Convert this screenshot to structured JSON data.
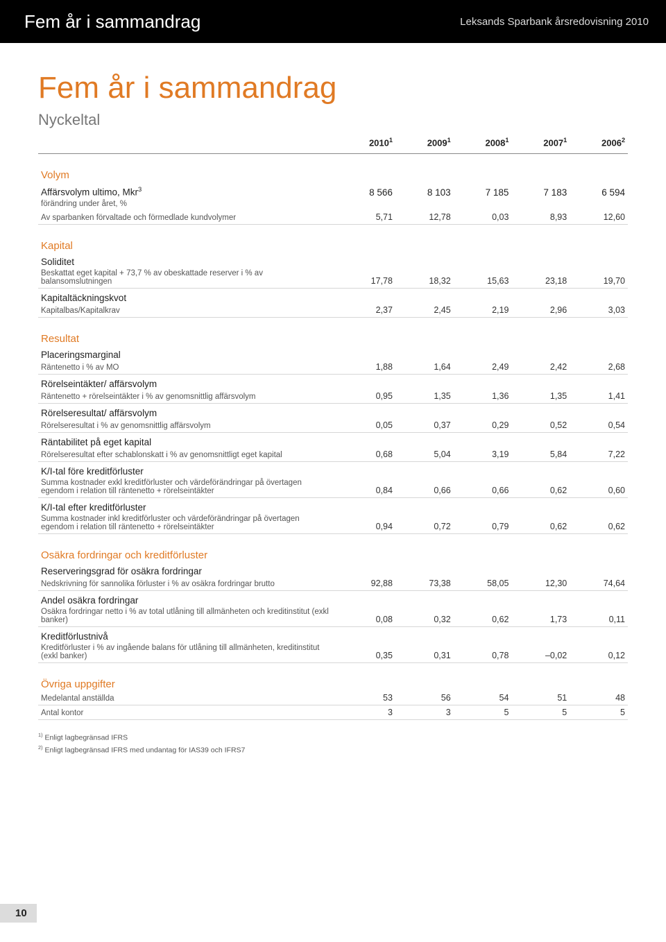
{
  "header": {
    "title": "Fem år i sammandrag",
    "right": "Leksands Sparbank årsredovisning 2010"
  },
  "main_title": "Fem år i sammandrag",
  "subtitle": "Nyckeltal",
  "years": [
    "2010",
    "2009",
    "2008",
    "2007",
    "2006"
  ],
  "year_super": [
    "1",
    "1",
    "1",
    "1",
    "2"
  ],
  "sections": [
    {
      "title": "Volym",
      "rows": [
        {
          "label": "Affärsvolym ultimo, Mkr",
          "sup": "3",
          "detail": "",
          "values": [
            "8 566",
            "8 103",
            "7 185",
            "7 183",
            "6 594"
          ]
        },
        {
          "label": "",
          "detail": "förändring under året, %",
          "values": [
            "",
            "",
            "",
            "",
            ""
          ],
          "noborder": true
        },
        {
          "label": "",
          "detail": "Av sparbanken förvaltade och förmedlade kundvolymer",
          "values": [
            "5,71",
            "12,78",
            "0,03",
            "8,93",
            "12,60"
          ]
        }
      ]
    },
    {
      "title": "Kapital",
      "rows": [
        {
          "label": "Soliditet",
          "detail": "",
          "values": [
            "",
            "",
            "",
            "",
            ""
          ],
          "noborder": true
        },
        {
          "label": "",
          "detail": "Beskattat eget kapital + 73,7 % av obeskattade reserver i % av balansomslutningen",
          "values": [
            "17,78",
            "18,32",
            "15,63",
            "23,18",
            "19,70"
          ]
        },
        {
          "label": "Kapitaltäckningskvot",
          "detail": "",
          "values": [
            "",
            "",
            "",
            "",
            ""
          ],
          "noborder": true
        },
        {
          "label": "",
          "detail": "Kapitalbas/Kapitalkrav",
          "values": [
            "2,37",
            "2,45",
            "2,19",
            "2,96",
            "3,03"
          ]
        }
      ]
    },
    {
      "title": "Resultat",
      "rows": [
        {
          "label": "Placeringsmarginal",
          "detail": "",
          "values": [
            "",
            "",
            "",
            "",
            ""
          ],
          "noborder": true
        },
        {
          "label": "",
          "detail": "Räntenetto i % av MO",
          "values": [
            "1,88",
            "1,64",
            "2,49",
            "2,42",
            "2,68"
          ]
        },
        {
          "label": "Rörelseintäkter/ affärsvolym",
          "detail": "",
          "values": [
            "",
            "",
            "",
            "",
            ""
          ],
          "noborder": true
        },
        {
          "label": "",
          "detail": "Räntenetto + rörelseintäkter i % av genomsnittlig affärsvolym",
          "values": [
            "0,95",
            "1,35",
            "1,36",
            "1,35",
            "1,41"
          ]
        },
        {
          "label": "Rörelseresultat/ affärsvolym",
          "detail": "",
          "values": [
            "",
            "",
            "",
            "",
            ""
          ],
          "noborder": true
        },
        {
          "label": "",
          "detail": "Rörelseresultat i % av genomsnittlig affärsvolym",
          "values": [
            "0,05",
            "0,37",
            "0,29",
            "0,52",
            "0,54"
          ]
        },
        {
          "label": "Räntabilitet på eget kapital",
          "detail": "",
          "values": [
            "",
            "",
            "",
            "",
            ""
          ],
          "noborder": true
        },
        {
          "label": "",
          "detail": "Rörelseresultat efter schablonskatt i % av genomsnittligt eget kapital",
          "values": [
            "0,68",
            "5,04",
            "3,19",
            "5,84",
            "7,22"
          ]
        },
        {
          "label": "K/I-tal före kreditförluster",
          "detail": "",
          "values": [
            "",
            "",
            "",
            "",
            ""
          ],
          "noborder": true
        },
        {
          "label": "",
          "detail": "Summa kostnader exkl kreditförluster och värdeförändringar på övertagen egendom i relation till räntenetto + rörelseintäkter",
          "values": [
            "0,84",
            "0,66",
            "0,66",
            "0,62",
            "0,60"
          ]
        },
        {
          "label": "K/I-tal efter kreditförluster",
          "detail": "",
          "values": [
            "",
            "",
            "",
            "",
            ""
          ],
          "noborder": true
        },
        {
          "label": "",
          "detail": "Summa kostnader inkl kreditförluster och värdeförändringar på övertagen egendom i relation till räntenetto + rörelseintäkter",
          "values": [
            "0,94",
            "0,72",
            "0,79",
            "0,62",
            "0,62"
          ]
        }
      ]
    },
    {
      "title": "Osäkra fordringar och kreditförluster",
      "rows": [
        {
          "label": "Reserveringsgrad för osäkra fordringar",
          "detail": "",
          "values": [
            "",
            "",
            "",
            "",
            ""
          ],
          "noborder": true
        },
        {
          "label": "",
          "detail": "Nedskrivning för sannolika förluster i % av osäkra fordringar brutto",
          "values": [
            "92,88",
            "73,38",
            "58,05",
            "12,30",
            "74,64"
          ]
        },
        {
          "label": "Andel osäkra fordringar",
          "detail": "",
          "values": [
            "",
            "",
            "",
            "",
            ""
          ],
          "noborder": true
        },
        {
          "label": "",
          "detail": "Osäkra fordringar netto i % av total utlåning till allmänheten och kreditinstitut (exkl banker)",
          "values": [
            "0,08",
            "0,32",
            "0,62",
            "1,73",
            "0,11"
          ]
        },
        {
          "label": "Kreditförlustnivå",
          "detail": "",
          "values": [
            "",
            "",
            "",
            "",
            ""
          ],
          "noborder": true
        },
        {
          "label": "",
          "detail": "Kreditförluster i % av ingående balans för utlåning till allmänheten, kreditinstitut (exkl banker)",
          "values": [
            "0,35",
            "0,31",
            "0,78",
            "–0,02",
            "0,12"
          ]
        }
      ]
    },
    {
      "title": "Övriga uppgifter",
      "rows": [
        {
          "label": "",
          "detail": "Medelantal anställda",
          "values": [
            "53",
            "56",
            "54",
            "51",
            "48"
          ]
        },
        {
          "label": "",
          "detail": "Antal kontor",
          "values": [
            "3",
            "3",
            "5",
            "5",
            "5"
          ]
        }
      ]
    }
  ],
  "footnotes": [
    "Enligt lagbegränsad IFRS",
    "Enligt lagbegränsad IFRS med undantag för IAS39 och IFRS7"
  ],
  "footnote_markers": [
    "1)",
    "2)"
  ],
  "page_number": "10",
  "colors": {
    "accent": "#e07a24",
    "header_bg": "#000000",
    "header_fg": "#ffffff",
    "border": "#d6d6d6",
    "section_border": "#888888",
    "text": "#333333"
  }
}
